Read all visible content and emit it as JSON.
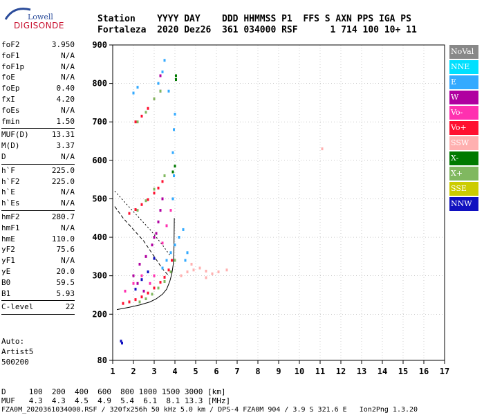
{
  "logo": {
    "brand": "Lowell",
    "name": "DIGISONDE"
  },
  "header": {
    "line1": "Station    YYYY DAY    DDD HHMMSS P1  FFS S AXN PPS IGA PS",
    "line2": "Fortaleza  2020 Dez26  361 034000 RSF      1 714 100 10+ 11"
  },
  "params": {
    "g1": [
      {
        "k": "foF2",
        "v": "3.950"
      },
      {
        "k": "foF1",
        "v": "N/A"
      },
      {
        "k": "foF1p",
        "v": "N/A"
      },
      {
        "k": "foE",
        "v": "N/A"
      },
      {
        "k": "foEp",
        "v": "0.40"
      },
      {
        "k": "fxI",
        "v": "4.20"
      },
      {
        "k": "foEs",
        "v": "N/A"
      },
      {
        "k": "fmin",
        "v": "1.50"
      }
    ],
    "g2": [
      {
        "k": "MUF(D)",
        "v": "13.31"
      },
      {
        "k": "M(D)",
        "v": "3.37"
      },
      {
        "k": "D",
        "v": "N/A"
      }
    ],
    "g3": [
      {
        "k": "h`F",
        "v": "225.0"
      },
      {
        "k": "h`F2",
        "v": "225.0"
      },
      {
        "k": "h`E",
        "v": "N/A"
      },
      {
        "k": "h`Es",
        "v": "N/A"
      }
    ],
    "g4": [
      {
        "k": "hmF2",
        "v": "280.7"
      },
      {
        "k": "hmF1",
        "v": "N/A"
      },
      {
        "k": "hmE",
        "v": "110.0"
      },
      {
        "k": "yF2",
        "v": "75.6"
      },
      {
        "k": "yF1",
        "v": "N/A"
      },
      {
        "k": "yE",
        "v": "20.0"
      },
      {
        "k": "B0",
        "v": "59.5"
      },
      {
        "k": "B1",
        "v": "5.93"
      }
    ],
    "g5": [
      {
        "k": "C-level",
        "v": "22"
      }
    ]
  },
  "auto": {
    "l1": "Auto:",
    "l2": "Artist5",
    "l3": "500200"
  },
  "legend": [
    {
      "label": "NoVal",
      "color": "#888888"
    },
    {
      "label": "NNE",
      "color": "#00e0ff"
    },
    {
      "label": "E",
      "color": "#33aaff"
    },
    {
      "label": "W",
      "color": "#b000a0"
    },
    {
      "label": "Vo-",
      "color": "#ff30b0"
    },
    {
      "label": "Vo+",
      "color": "#ff1030"
    },
    {
      "label": "SSW",
      "color": "#ffb0b0"
    },
    {
      "label": "X-",
      "color": "#007a00"
    },
    {
      "label": "X+",
      "color": "#80b860"
    },
    {
      "label": "SSE",
      "color": "#cccc00"
    },
    {
      "label": "NNW",
      "color": "#1010c0"
    }
  ],
  "footer": {
    "line1": "D     100  200  400  600  800 1000 1500 3000 [km]",
    "line2": "MUF   4.3  4.3  4.5  4.9  5.4  6.1  8.1 13.3 [MHz]",
    "line3": "FZA0M_2020361034000.RSF / 320fx256h 50 kHz 5.0 km / DPS-4 FZA0M 904 / 3.9 S 321.6 E   Ion2Png 1.3.20"
  },
  "chart_data": {
    "type": "scatter",
    "xlim": [
      1,
      17
    ],
    "ylim": [
      80,
      900
    ],
    "xticks": [
      1,
      2,
      3,
      4,
      5,
      6,
      7,
      8,
      9,
      10,
      11,
      12,
      13,
      14,
      15,
      16,
      17
    ],
    "yticks": [
      80,
      200,
      300,
      400,
      500,
      600,
      700,
      800,
      900
    ],
    "grid": "dotted",
    "legend_position": "right",
    "series": [
      {
        "name": "Vo+",
        "color": "#ff1030",
        "points": [
          [
            1.5,
            228
          ],
          [
            1.8,
            232
          ],
          [
            2.1,
            238
          ],
          [
            2.4,
            245
          ],
          [
            2.7,
            255
          ],
          [
            3.0,
            268
          ],
          [
            3.3,
            283
          ],
          [
            3.5,
            296
          ],
          [
            3.7,
            315
          ],
          [
            3.85,
            340
          ],
          [
            1.8,
            462
          ],
          [
            2.1,
            472
          ],
          [
            2.4,
            485
          ],
          [
            2.7,
            498
          ],
          [
            3.0,
            515
          ],
          [
            3.2,
            528
          ],
          [
            3.4,
            545
          ],
          [
            2.1,
            700
          ],
          [
            2.4,
            715
          ],
          [
            2.7,
            735
          ],
          [
            3.0,
            760
          ]
        ]
      },
      {
        "name": "E",
        "color": "#33aaff",
        "points": [
          [
            3.4,
            320
          ],
          [
            3.6,
            340
          ],
          [
            3.8,
            360
          ],
          [
            4.0,
            380
          ],
          [
            4.2,
            400
          ],
          [
            4.4,
            420
          ],
          [
            4.6,
            360
          ],
          [
            4.5,
            340
          ],
          [
            3.9,
            500
          ],
          [
            3.95,
            560
          ],
          [
            3.9,
            620
          ],
          [
            3.95,
            680
          ],
          [
            4.0,
            720
          ],
          [
            3.7,
            780
          ],
          [
            2.0,
            775
          ],
          [
            2.2,
            790
          ],
          [
            3.2,
            800
          ],
          [
            3.4,
            830
          ],
          [
            3.5,
            860
          ]
        ]
      },
      {
        "name": "W",
        "color": "#b000a0",
        "points": [
          [
            2.0,
            300
          ],
          [
            2.3,
            330
          ],
          [
            2.6,
            350
          ],
          [
            2.9,
            380
          ],
          [
            3.1,
            410
          ],
          [
            3.2,
            440
          ],
          [
            3.3,
            470
          ],
          [
            3.4,
            500
          ],
          [
            2.2,
            280
          ],
          [
            2.5,
            260
          ],
          [
            3.0,
            400
          ],
          [
            3.3,
            780
          ],
          [
            3.3,
            820
          ]
        ]
      },
      {
        "name": "X-",
        "color": "#007a00",
        "points": [
          [
            4.05,
            810
          ],
          [
            4.05,
            820
          ],
          [
            3.9,
            570
          ],
          [
            4.0,
            585
          ]
        ]
      },
      {
        "name": "X+",
        "color": "#80b860",
        "points": [
          [
            2.3,
            232
          ],
          [
            2.6,
            240
          ],
          [
            2.9,
            252
          ],
          [
            3.2,
            268
          ],
          [
            3.5,
            285
          ],
          [
            3.8,
            310
          ],
          [
            4.0,
            340
          ],
          [
            2.2,
            470
          ],
          [
            2.6,
            495
          ],
          [
            3.0,
            525
          ],
          [
            3.5,
            560
          ],
          [
            2.2,
            700
          ],
          [
            2.6,
            725
          ],
          [
            3.0,
            760
          ],
          [
            3.3,
            780
          ]
        ]
      },
      {
        "name": "SSW",
        "color": "#ffb0b0",
        "points": [
          [
            4.3,
            300
          ],
          [
            4.6,
            310
          ],
          [
            4.9,
            315
          ],
          [
            5.2,
            320
          ],
          [
            5.5,
            312
          ],
          [
            5.8,
            305
          ],
          [
            6.1,
            310
          ],
          [
            6.5,
            315
          ],
          [
            4.8,
            330
          ],
          [
            5.5,
            295
          ],
          [
            11.1,
            630
          ]
        ]
      },
      {
        "name": "NNW",
        "color": "#1010c0",
        "points": [
          [
            1.4,
            130
          ],
          [
            1.45,
            125
          ],
          [
            2.1,
            265
          ],
          [
            2.4,
            290
          ],
          [
            2.7,
            310
          ],
          [
            3.0,
            345
          ]
        ]
      },
      {
        "name": "Vo-",
        "color": "#ff30b0",
        "points": [
          [
            1.6,
            260
          ],
          [
            2.0,
            280
          ],
          [
            2.4,
            300
          ],
          [
            2.8,
            280
          ],
          [
            3.0,
            300
          ],
          [
            3.4,
            385
          ],
          [
            3.6,
            430
          ],
          [
            3.8,
            470
          ]
        ]
      }
    ],
    "curves": [
      {
        "style": "solid",
        "points": [
          [
            1.2,
            212
          ],
          [
            1.8,
            218
          ],
          [
            2.3,
            224
          ],
          [
            2.8,
            232
          ],
          [
            3.1,
            240
          ],
          [
            3.4,
            252
          ],
          [
            3.6,
            265
          ],
          [
            3.75,
            285
          ],
          [
            3.85,
            305
          ],
          [
            3.92,
            330
          ],
          [
            3.95,
            360
          ],
          [
            3.97,
            450
          ]
        ]
      },
      {
        "style": "dashed",
        "points": [
          [
            1.1,
            480
          ],
          [
            1.5,
            450
          ],
          [
            2.0,
            420
          ],
          [
            2.5,
            390
          ],
          [
            3.0,
            350
          ],
          [
            3.4,
            318
          ],
          [
            3.7,
            300
          ]
        ]
      },
      {
        "style": "dotted",
        "points": [
          [
            1.1,
            520
          ],
          [
            1.6,
            490
          ],
          [
            2.2,
            455
          ],
          [
            2.8,
            420
          ],
          [
            3.4,
            380
          ],
          [
            3.8,
            350
          ]
        ]
      }
    ]
  }
}
